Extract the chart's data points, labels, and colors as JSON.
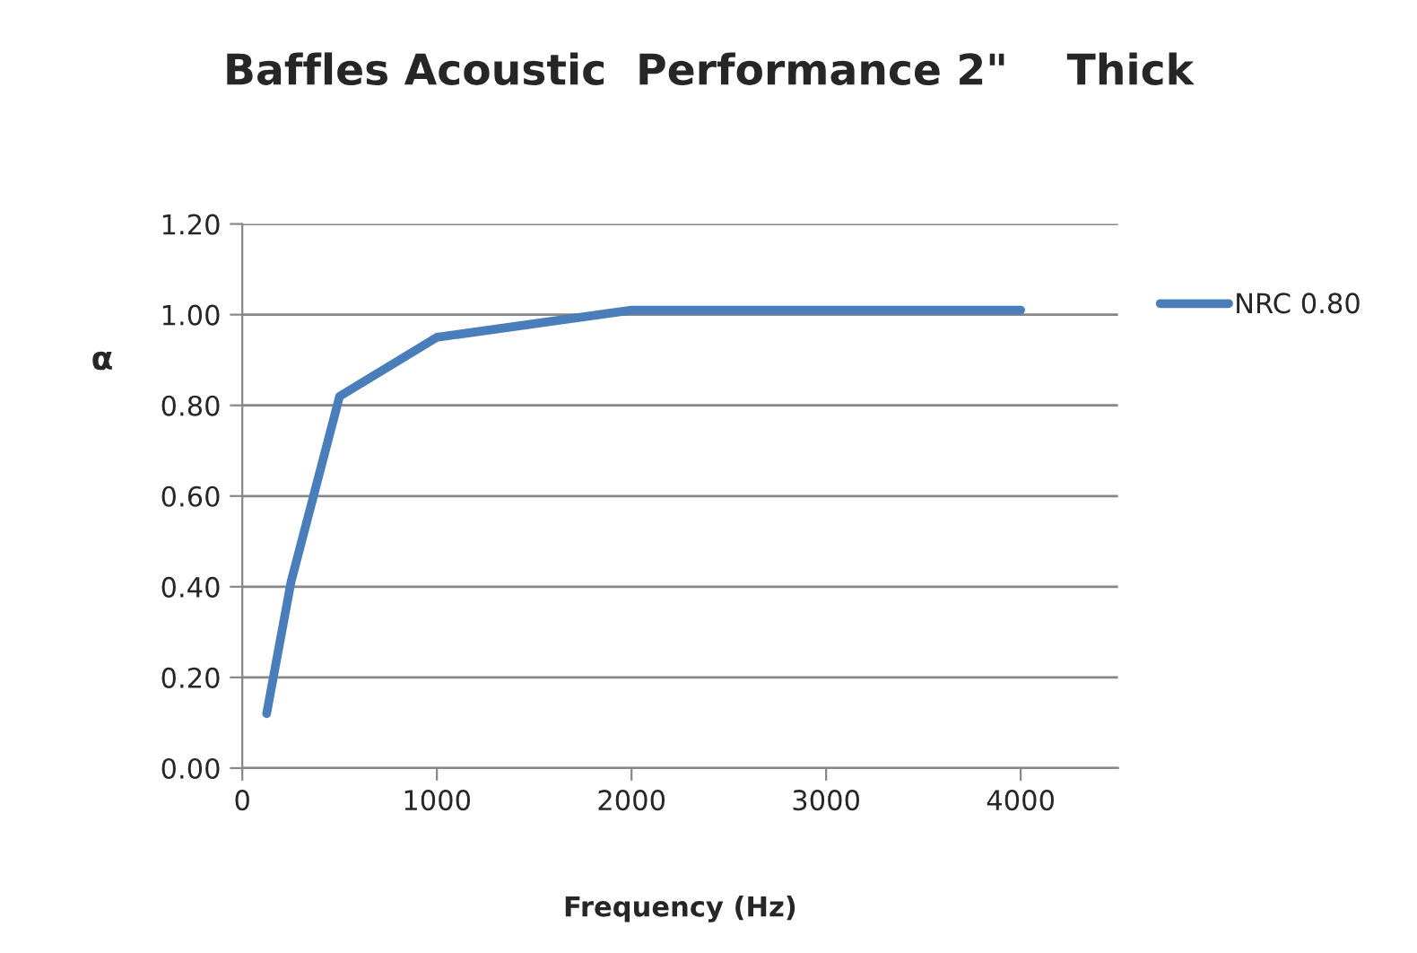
{
  "chart_data": {
    "type": "line",
    "title": "Baffles Acoustic  Performance 2\"    Thick",
    "xlabel": "Frequency (Hz)",
    "ylabel": "α",
    "x": [
      125,
      250,
      500,
      1000,
      2000,
      4000
    ],
    "series": [
      {
        "name": "NRC 0.80",
        "color": "#4a7ebb",
        "values": [
          0.12,
          0.41,
          0.82,
          0.95,
          1.01,
          1.01
        ]
      }
    ],
    "xlim": [
      0,
      4500
    ],
    "xticks": [
      0,
      1000,
      2000,
      3000,
      4000
    ],
    "ylim": [
      0,
      1.2
    ],
    "yticks": [
      {
        "value": 0,
        "label": "0.00"
      },
      {
        "value": 0.2,
        "label": "0.20"
      },
      {
        "value": 0.4,
        "label": "0.40"
      },
      {
        "value": 0.6,
        "label": "0.60"
      },
      {
        "value": 0.8,
        "label": "0.80"
      },
      {
        "value": 1.0,
        "label": "1.00"
      },
      {
        "value": 1.2,
        "label": "1.20"
      }
    ],
    "grid": "y",
    "legend": "right",
    "marker": "none",
    "line_style": "solid"
  }
}
